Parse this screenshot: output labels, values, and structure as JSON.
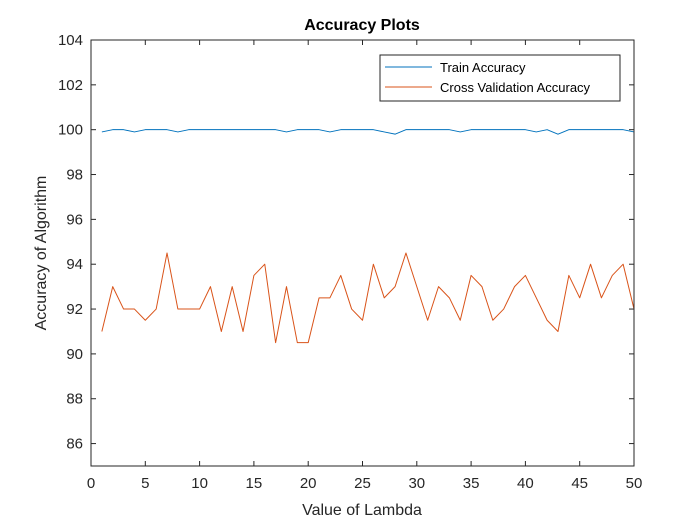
{
  "chart_data": {
    "type": "line",
    "title": "Accuracy Plots",
    "xlabel": "Value of Lambda",
    "ylabel": "Accuracy of Algorithm",
    "xlim": [
      0,
      50
    ],
    "ylim": [
      85,
      104
    ],
    "xticks": [
      0,
      5,
      10,
      15,
      20,
      25,
      30,
      35,
      40,
      45,
      50
    ],
    "yticks": [
      86,
      88,
      90,
      92,
      94,
      96,
      98,
      100,
      102,
      104
    ],
    "grid": false,
    "legend_location": "top-right",
    "x": [
      1,
      2,
      3,
      4,
      5,
      6,
      7,
      8,
      9,
      10,
      11,
      12,
      13,
      14,
      15,
      16,
      17,
      18,
      19,
      20,
      21,
      22,
      23,
      24,
      25,
      26,
      27,
      28,
      29,
      30,
      31,
      32,
      33,
      34,
      35,
      36,
      37,
      38,
      39,
      40,
      41,
      42,
      43,
      44,
      45,
      46,
      47,
      48,
      49,
      50
    ],
    "series": [
      {
        "name": "Train Accuracy",
        "color": "#0072BD",
        "values": [
          99.9,
          100,
          100,
          99.9,
          100,
          100,
          100,
          99.9,
          100,
          100,
          100,
          100,
          100,
          100,
          100,
          100,
          100,
          99.9,
          100,
          100,
          100,
          99.9,
          100,
          100,
          100,
          100,
          99.9,
          99.8,
          100,
          100,
          100,
          100,
          100,
          99.9,
          100,
          100,
          100,
          100,
          100,
          100,
          99.9,
          100,
          99.8,
          100,
          100,
          100,
          100,
          100,
          100,
          99.9
        ]
      },
      {
        "name": "Cross Validation Accuracy",
        "color": "#D95319",
        "values": [
          91,
          93,
          92,
          92,
          91.5,
          92,
          94.5,
          92,
          92,
          92,
          93,
          91,
          93,
          91,
          93.5,
          94,
          90.5,
          93,
          90.5,
          90.5,
          92.5,
          92.5,
          93.5,
          92,
          91.5,
          94,
          92.5,
          93,
          94.5,
          93,
          91.5,
          93,
          92.5,
          91.5,
          93.5,
          93,
          91.5,
          92,
          93,
          93.5,
          92.5,
          91.5,
          91,
          93.5,
          92.5,
          94,
          92.5,
          93.5,
          94,
          92
        ]
      }
    ]
  }
}
